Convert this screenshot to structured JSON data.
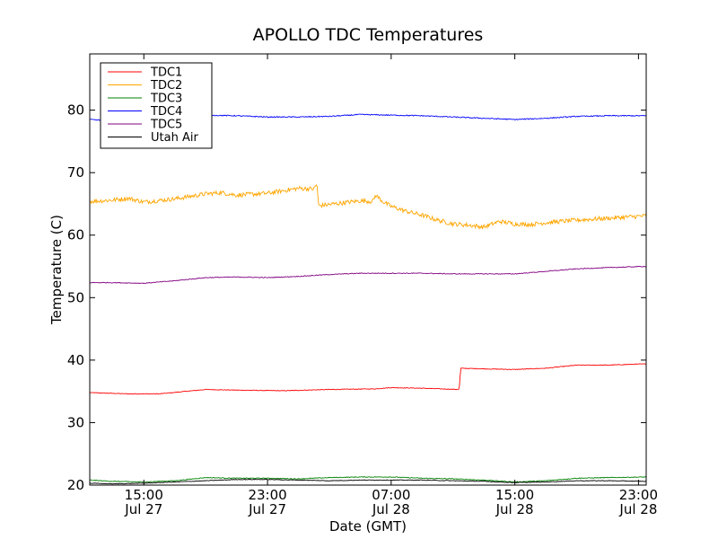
{
  "chart_data": {
    "type": "line",
    "title": "APOLLO TDC Temperatures",
    "xlabel": "Date (GMT)",
    "ylabel": "Temperature (C)",
    "xlim": [
      11.5,
      47.5
    ],
    "ylim": [
      20,
      89
    ],
    "x_units": "hours since Jul 27 00:00 GMT",
    "yticks": [
      20,
      30,
      40,
      50,
      60,
      70,
      80
    ],
    "xticks": [
      {
        "x": 15,
        "time": "15:00",
        "date": "Jul 27"
      },
      {
        "x": 23,
        "time": "23:00",
        "date": "Jul 27"
      },
      {
        "x": 31,
        "time": "07:00",
        "date": "Jul 28"
      },
      {
        "x": 39,
        "time": "15:00",
        "date": "Jul 28"
      },
      {
        "x": 47,
        "time": "23:00",
        "date": "Jul 28"
      }
    ],
    "legend_position": "top-left",
    "series": [
      {
        "name": "TDC1",
        "color": "#ff0000",
        "noise": 0.05,
        "points": [
          [
            11.5,
            34.8
          ],
          [
            14,
            34.6
          ],
          [
            16,
            34.6
          ],
          [
            19,
            35.3
          ],
          [
            21,
            35.2
          ],
          [
            24,
            35.1
          ],
          [
            27,
            35.3
          ],
          [
            30,
            35.4
          ],
          [
            31,
            35.6
          ],
          [
            33,
            35.5
          ],
          [
            35.4,
            35.3
          ],
          [
            35.5,
            38.7
          ],
          [
            37,
            38.6
          ],
          [
            39,
            38.5
          ],
          [
            41,
            38.7
          ],
          [
            43,
            39.2
          ],
          [
            45,
            39.2
          ],
          [
            47.5,
            39.4
          ]
        ]
      },
      {
        "name": "TDC2",
        "color": "#ffa500",
        "noise": 0.35,
        "points": [
          [
            11.5,
            65.4
          ],
          [
            13,
            65.6
          ],
          [
            14,
            65.9
          ],
          [
            15,
            65.3
          ],
          [
            17,
            65.8
          ],
          [
            19,
            66.6
          ],
          [
            20,
            66.8
          ],
          [
            21,
            66.4
          ],
          [
            23,
            66.7
          ],
          [
            25,
            67.5
          ],
          [
            26,
            67.4
          ],
          [
            26.2,
            68.2
          ],
          [
            26.3,
            64.7
          ],
          [
            27,
            64.9
          ],
          [
            29,
            65.5
          ],
          [
            29.8,
            65.4
          ],
          [
            30,
            66.4
          ],
          [
            30.5,
            65.3
          ],
          [
            31,
            64.6
          ],
          [
            32,
            63.8
          ],
          [
            33,
            63.2
          ],
          [
            34,
            62.4
          ],
          [
            35,
            61.8
          ],
          [
            36,
            61.6
          ],
          [
            37,
            61.3
          ],
          [
            38,
            62.2
          ],
          [
            39,
            61.8
          ],
          [
            40,
            61.7
          ],
          [
            41,
            62.0
          ],
          [
            43,
            62.4
          ],
          [
            45,
            62.7
          ],
          [
            47.5,
            63.1
          ]
        ]
      },
      {
        "name": "TDC3",
        "color": "#008000",
        "noise": 0.06,
        "points": [
          [
            11.5,
            20.8
          ],
          [
            13,
            20.6
          ],
          [
            15,
            20.5
          ],
          [
            17,
            20.7
          ],
          [
            19,
            21.2
          ],
          [
            21,
            21.1
          ],
          [
            23,
            21.1
          ],
          [
            25,
            21.0
          ],
          [
            27,
            21.2
          ],
          [
            29,
            21.3
          ],
          [
            31,
            21.3
          ],
          [
            33,
            21.1
          ],
          [
            35,
            21.0
          ],
          [
            37,
            20.8
          ],
          [
            39,
            20.5
          ],
          [
            41,
            20.7
          ],
          [
            43,
            21.1
          ],
          [
            45,
            21.2
          ],
          [
            47.5,
            21.3
          ]
        ]
      },
      {
        "name": "TDC4",
        "color": "#0000ff",
        "noise": 0.08,
        "points": [
          [
            11.5,
            78.5
          ],
          [
            13,
            78.3
          ],
          [
            15,
            78.6
          ],
          [
            17,
            79.1
          ],
          [
            19,
            79.2
          ],
          [
            21,
            79.1
          ],
          [
            23,
            78.9
          ],
          [
            25,
            78.9
          ],
          [
            27,
            79.0
          ],
          [
            29,
            79.3
          ],
          [
            31,
            79.2
          ],
          [
            33,
            79.1
          ],
          [
            35,
            78.9
          ],
          [
            37,
            78.7
          ],
          [
            39,
            78.5
          ],
          [
            41,
            78.7
          ],
          [
            43,
            79.0
          ],
          [
            45,
            79.1
          ],
          [
            47.5,
            79.1
          ]
        ]
      },
      {
        "name": "TDC5",
        "color": "#800080",
        "noise": 0.06,
        "points": [
          [
            11.5,
            52.4
          ],
          [
            13,
            52.4
          ],
          [
            15,
            52.3
          ],
          [
            17,
            52.7
          ],
          [
            19,
            53.2
          ],
          [
            21,
            53.3
          ],
          [
            23,
            53.2
          ],
          [
            25,
            53.4
          ],
          [
            27,
            53.7
          ],
          [
            29,
            53.9
          ],
          [
            31,
            53.9
          ],
          [
            33,
            53.9
          ],
          [
            35,
            53.8
          ],
          [
            37,
            53.8
          ],
          [
            39,
            53.8
          ],
          [
            41,
            54.2
          ],
          [
            43,
            54.6
          ],
          [
            45,
            54.8
          ],
          [
            47.5,
            55.0
          ]
        ]
      },
      {
        "name": "Utah Air",
        "color": "#000000",
        "noise": 0.05,
        "points": [
          [
            11.5,
            20.3
          ],
          [
            13,
            20.2
          ],
          [
            15,
            20.3
          ],
          [
            17,
            20.5
          ],
          [
            19,
            20.7
          ],
          [
            21,
            20.9
          ],
          [
            23,
            20.9
          ],
          [
            25,
            20.8
          ],
          [
            27,
            20.7
          ],
          [
            29,
            20.8
          ],
          [
            31,
            20.8
          ],
          [
            33,
            20.8
          ],
          [
            35,
            20.7
          ],
          [
            37,
            20.6
          ],
          [
            39,
            20.4
          ],
          [
            41,
            20.5
          ],
          [
            43,
            20.7
          ],
          [
            45,
            20.7
          ],
          [
            47.5,
            20.6
          ]
        ]
      }
    ]
  }
}
